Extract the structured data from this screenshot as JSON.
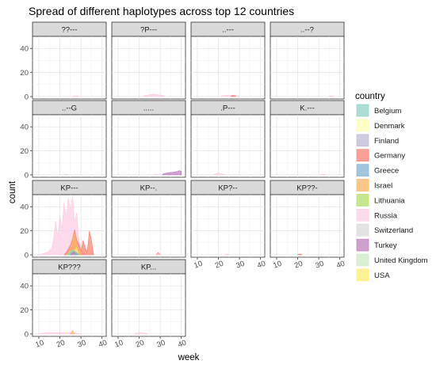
{
  "chart_data": {
    "type": "area",
    "title": "Spread of different haplotypes across top 12 countries",
    "xlabel": "week",
    "ylabel": "count",
    "x_ticks": [
      10,
      20,
      30,
      40
    ],
    "y_ticks": [
      0,
      20,
      40
    ],
    "xlim": [
      7,
      42
    ],
    "ylim": [
      -2,
      50
    ],
    "grid": true,
    "legend": {
      "title": "country",
      "position": "right",
      "entries": [
        {
          "name": "Belgium",
          "color": "#8dd3c7"
        },
        {
          "name": "Denmark",
          "color": "#ffffb3"
        },
        {
          "name": "Finland",
          "color": "#bebada"
        },
        {
          "name": "Germany",
          "color": "#fb8072"
        },
        {
          "name": "Greece",
          "color": "#80b1d3"
        },
        {
          "name": "Israel",
          "color": "#fdb462"
        },
        {
          "name": "Lithuania",
          "color": "#b3de69"
        },
        {
          "name": "Russia",
          "color": "#fccde5"
        },
        {
          "name": "Switzerland",
          "color": "#d9d9d9"
        },
        {
          "name": "Turkey",
          "color": "#bc80bd"
        },
        {
          "name": "United Kingdom",
          "color": "#ccebc5"
        },
        {
          "name": "USA",
          "color": "#ffed6f"
        }
      ]
    },
    "panels": [
      {
        "label": "??---",
        "series": [
          {
            "country": "Russia",
            "weeks": [
              26,
              27,
              28,
              29
            ],
            "values": [
              0.3,
              0.6,
              0.6,
              0.3
            ]
          }
        ]
      },
      {
        "label": "?P---",
        "series": [
          {
            "country": "Russia",
            "weeks": [
              22,
              23,
              24,
              25,
              26,
              27,
              28,
              29,
              30,
              31,
              32
            ],
            "values": [
              0.5,
              1,
              1.2,
              1.5,
              1.8,
              1.8,
              1.5,
              1.5,
              1.2,
              1,
              0.5
            ]
          }
        ]
      },
      {
        "label": "..---",
        "series": [
          {
            "country": "Russia",
            "weeks": [
              21,
              22,
              23,
              24,
              25,
              26,
              27,
              28,
              29,
              30
            ],
            "values": [
              0.5,
              0.8,
              1.2,
              1.2,
              1,
              1,
              1.2,
              1,
              0.6,
              0.3
            ]
          },
          {
            "country": "Germany",
            "weeks": [
              26,
              27,
              28
            ],
            "values": [
              0.3,
              1,
              0.3
            ]
          }
        ]
      },
      {
        "label": "..--?",
        "series": [
          {
            "country": "Russia",
            "weeks": [
              35,
              36,
              37
            ],
            "values": [
              0.2,
              0.5,
              0.2
            ]
          }
        ]
      },
      {
        "label": "..--G",
        "series": [
          {
            "country": "Switzerland",
            "weeks": [
              22,
              23,
              24
            ],
            "values": [
              0.2,
              0.5,
              0.2
            ]
          }
        ]
      },
      {
        "label": ".....",
        "series": [
          {
            "country": "Russia",
            "weeks": [
              27,
              28,
              29
            ],
            "values": [
              0.2,
              0.5,
              0.2
            ]
          },
          {
            "country": "Turkey",
            "weeks": [
              31,
              32,
              33,
              34,
              35,
              36,
              37,
              38,
              39,
              40
            ],
            "values": [
              0.5,
              1.2,
              1.5,
              1.8,
              2,
              2.2,
              2.5,
              2.8,
              3.5,
              3
            ]
          }
        ]
      },
      {
        "label": ".P---",
        "series": [
          {
            "country": "Russia",
            "weeks": [
              18,
              19,
              20,
              21,
              22,
              23
            ],
            "values": [
              0.3,
              1,
              1.3,
              1,
              0.6,
              0.3
            ]
          }
        ]
      },
      {
        "label": "K.---",
        "series": [
          {
            "country": "Russia",
            "weeks": [
              31,
              32,
              33
            ],
            "values": [
              0.2,
              0.6,
              0.2
            ]
          }
        ]
      },
      {
        "label": "KP---",
        "series": [
          {
            "country": "Russia",
            "weeks": [
              10,
              12,
              14,
              16,
              17,
              18,
              19,
              20,
              21,
              22,
              23,
              24,
              25,
              26,
              27,
              28,
              29,
              30,
              31,
              32
            ],
            "values": [
              0,
              1,
              2,
              5,
              13,
              28,
              15,
              32,
              22,
              44,
              30,
              47,
              38,
              49,
              27,
              35,
              12,
              6,
              2,
              0
            ]
          },
          {
            "country": "Germany",
            "weeks": [
              22,
              23,
              24,
              25,
              26,
              27,
              28,
              29,
              30,
              31,
              32,
              33,
              34,
              35,
              36
            ],
            "values": [
              0,
              2,
              5,
              8,
              14,
              21,
              12,
              9,
              3,
              12,
              6,
              2,
              20,
              12,
              0
            ]
          },
          {
            "country": "Israel",
            "weeks": [
              24,
              25,
              26,
              27,
              28,
              29,
              30
            ],
            "values": [
              0,
              6,
              14,
              18,
              9,
              5,
              0
            ]
          },
          {
            "country": "USA",
            "weeks": [
              26,
              27,
              28,
              29
            ],
            "values": [
              0,
              4,
              6,
              0
            ]
          },
          {
            "country": "Lithuania",
            "weeks": [
              23,
              24,
              25,
              26,
              27,
              28,
              29
            ],
            "values": [
              0,
              1.5,
              3,
              4,
              3,
              1.5,
              0
            ]
          },
          {
            "country": "Belgium",
            "weeks": [
              24,
              25,
              26,
              27,
              28
            ],
            "values": [
              0,
              2,
              4,
              2,
              0
            ]
          },
          {
            "country": "Turkey",
            "weeks": [
              25,
              26,
              27,
              28
            ],
            "values": [
              0,
              2,
              3,
              0
            ]
          },
          {
            "country": "Greece",
            "weeks": [
              27,
              28,
              29
            ],
            "values": [
              0,
              2,
              0
            ]
          }
        ]
      },
      {
        "label": "KP--.",
        "series": [
          {
            "country": "Germany",
            "weeks": [
              28,
              29,
              30
            ],
            "values": [
              0,
              2,
              0
            ]
          },
          {
            "country": "Russia",
            "weeks": [
              28,
              29,
              30
            ],
            "values": [
              0,
              0.8,
              0
            ]
          }
        ]
      },
      {
        "label": "KP?--",
        "series": [
          {
            "country": "Russia",
            "weeks": [
              23,
              24,
              25
            ],
            "values": [
              0.2,
              0.5,
              0.2
            ]
          }
        ]
      },
      {
        "label": "KP??-",
        "series": [
          {
            "country": "Germany",
            "weeks": [
              20,
              21,
              22
            ],
            "values": [
              0.2,
              0.5,
              0.2
            ]
          }
        ]
      },
      {
        "label": "KP???",
        "series": [
          {
            "country": "Russia",
            "weeks": [
              10,
              12,
              14,
              16,
              18,
              20,
              22,
              24,
              26,
              28,
              30
            ],
            "values": [
              0.3,
              0.8,
              1,
              1,
              1,
              1,
              1,
              1,
              0.8,
              0.5,
              0.3
            ]
          },
          {
            "country": "Israel",
            "weeks": [
              25,
              26,
              27
            ],
            "values": [
              0,
              3,
              0
            ]
          }
        ]
      },
      {
        "label": "KP...",
        "series": [
          {
            "country": "Russia",
            "weeks": [
              18,
              19,
              20,
              21,
              22,
              23,
              24
            ],
            "values": [
              0.3,
              0.8,
              1,
              1,
              0.8,
              0.5,
              0.2
            ]
          }
        ]
      }
    ]
  }
}
